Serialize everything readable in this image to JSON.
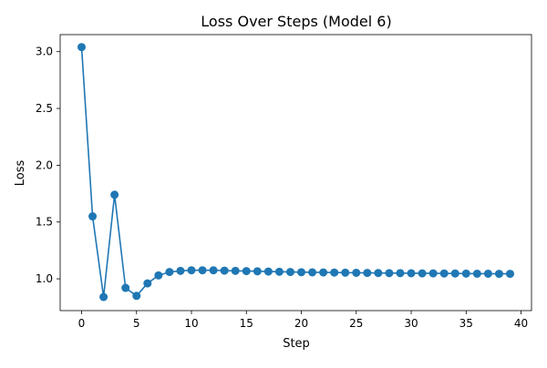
{
  "chart_data": {
    "type": "line",
    "title": "Loss Over Steps (Model 6)",
    "xlabel": "Step",
    "ylabel": "Loss",
    "xlim": [
      -1.95,
      40.95
    ],
    "ylim": [
      0.72,
      3.15
    ],
    "xticks": [
      0,
      5,
      10,
      15,
      20,
      25,
      30,
      35,
      40
    ],
    "yticks": [
      1.0,
      1.5,
      2.0,
      2.5,
      3.0
    ],
    "xtick_labels": [
      "0",
      "5",
      "10",
      "15",
      "20",
      "25",
      "30",
      "35",
      "40"
    ],
    "ytick_labels": [
      "1.0",
      "1.5",
      "2.0",
      "2.5",
      "3.0"
    ],
    "grid": false,
    "series": [
      {
        "color": "#1f77b4",
        "marker": "circle",
        "x": [
          0,
          1,
          2,
          3,
          4,
          5,
          6,
          7,
          8,
          9,
          10,
          11,
          12,
          13,
          14,
          15,
          16,
          17,
          18,
          19,
          20,
          21,
          22,
          23,
          24,
          25,
          26,
          27,
          28,
          29,
          30,
          31,
          32,
          33,
          34,
          35,
          36,
          37,
          38,
          39
        ],
        "y": [
          3.04,
          1.55,
          0.84,
          1.74,
          0.92,
          0.85,
          0.96,
          1.03,
          1.06,
          1.07,
          1.075,
          1.075,
          1.075,
          1.072,
          1.07,
          1.068,
          1.066,
          1.064,
          1.062,
          1.06,
          1.058,
          1.057,
          1.056,
          1.055,
          1.054,
          1.053,
          1.052,
          1.051,
          1.05,
          1.05,
          1.049,
          1.048,
          1.048,
          1.047,
          1.047,
          1.046,
          1.045,
          1.045,
          1.044,
          1.044
        ]
      }
    ]
  }
}
